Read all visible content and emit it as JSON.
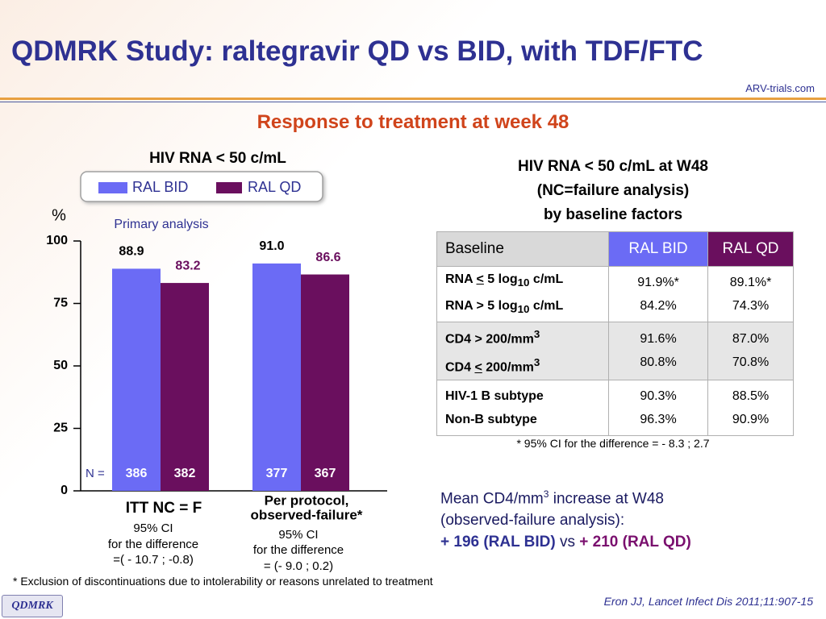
{
  "title": "QDMRK Study: raltegravir QD vs BID, with TDF/FTC",
  "logo": "ARV-trials.com",
  "subtitle": "Response to treatment at week 48",
  "chart_data": {
    "type": "bar",
    "title": "HIV RNA < 50 c/mL",
    "y_label": "%",
    "annotation": "Primary analysis",
    "categories": [
      [
        "ITT NC = F"
      ],
      [
        "Per protocol,",
        "observed-failure*"
      ]
    ],
    "series": [
      {
        "name": "RAL BID",
        "color": "#6b6bf5",
        "values": [
          88.9,
          91.0
        ],
        "value_labels": [
          "88.9",
          "91.0"
        ],
        "n": [
          386,
          377
        ]
      },
      {
        "name": "RAL QD",
        "color": "#6a0f5e",
        "values": [
          83.2,
          86.6
        ],
        "value_labels": [
          "83.2",
          "86.6"
        ],
        "n": [
          382,
          367
        ]
      }
    ],
    "n_label": "N =",
    "ci_notes": [
      [
        "95% CI",
        "for the difference",
        "=( - 10.7 ; -0.8)"
      ],
      [
        "95% CI",
        "for the difference",
        "= (- 9.0 ; 0.2)"
      ]
    ],
    "ylim": [
      0,
      100
    ],
    "yticks": [
      0,
      25,
      50,
      75,
      100
    ]
  },
  "table": {
    "title_lines": [
      "HIV RNA < 50 c/mL at W48",
      "(NC=failure analysis)",
      "by baseline factors"
    ],
    "header": [
      "Baseline",
      "RAL BID",
      "RAL QD"
    ],
    "rows": [
      {
        "labels": [
          [
            "RNA ",
            "<",
            " 5 log",
            "10",
            " c/mL"
          ],
          [
            "RNA > 5 log",
            "10",
            " c/mL"
          ]
        ],
        "bid": [
          "91.9%*",
          "84.2%"
        ],
        "qd": [
          "89.1%*",
          "74.3%"
        ]
      },
      {
        "labels": [
          [
            "CD4 > 200/mm",
            "3"
          ],
          [
            "CD4 ",
            "<",
            " 200/mm",
            "3"
          ]
        ],
        "bid": [
          "91.6%",
          "80.8%"
        ],
        "qd": [
          "87.0%",
          "70.8%"
        ]
      },
      {
        "labels": [
          [
            "HIV-1 B subtype"
          ],
          [
            "Non-B subtype"
          ]
        ],
        "bid": [
          "90.3%",
          "96.3%"
        ],
        "qd": [
          "88.5%",
          "90.9%"
        ]
      }
    ],
    "footnote": "* 95% CI for the difference = - 8.3 ; 2.7"
  },
  "cd4_note": {
    "line1": [
      "Mean CD4/mm",
      "3",
      " increase at W48"
    ],
    "line2": "(observed-failure analysis):",
    "line3": [
      "+ 196 (RAL BID)",
      " vs ",
      "+ 210 (RAL QD)"
    ]
  },
  "footnote": "* Exclusion of discontinuations due to intolerability or reasons unrelated to treatment",
  "tag": "QDMRK",
  "citation": "Eron JJ, Lancet Infect Dis 2011;11:907-15"
}
